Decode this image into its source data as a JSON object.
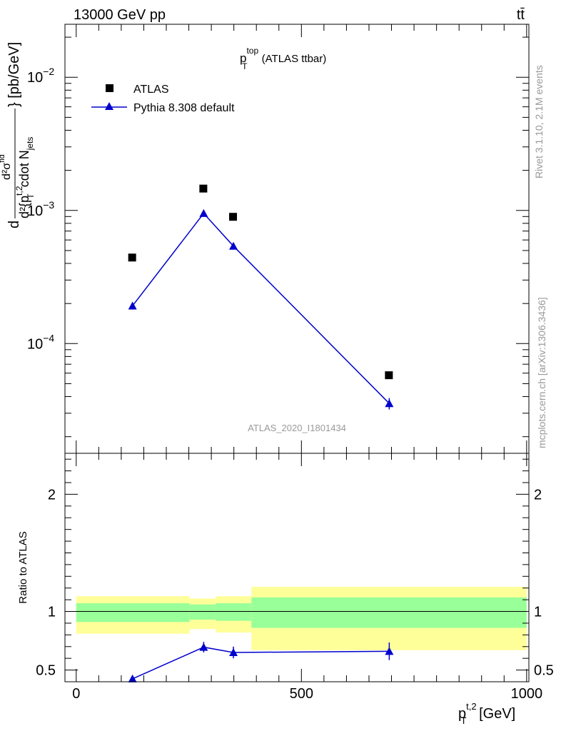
{
  "header": {
    "left": "13000 GeV pp",
    "right": "tt̄"
  },
  "side_labels": {
    "rivet": "Rivet 3.1.10,  2.1M events",
    "mcplots": "mcplots.cern.ch [arXiv:1306.3436]"
  },
  "colors": {
    "data": "#000000",
    "mc": "#0000cc",
    "band_inner": "#99ff99",
    "band_outer": "#ffff99"
  },
  "chart_data": [
    {
      "type": "scatter",
      "title": {
        "main": "p",
        "sup": "top",
        "sub": "T",
        "rest": " (ATLAS ttbar)"
      },
      "watermark": "ATLAS_2020_I1801434",
      "ylabel": {
        "prefix": "d",
        "frac_num": "d²σ",
        "frac_num_sup": "fid",
        "frac_den": "d²{p",
        "frac_den_sup": "t,2",
        "frac_den_sub": "T",
        "frac_den_rest": " cdot N",
        "frac_den_rest_sub": "jets",
        "suffix": "} [pb/GeV]"
      },
      "yscale": "log",
      "xlim": [
        -25,
        1005
      ],
      "ylim": [
        1.5e-05,
        0.025
      ],
      "yticks": [
        {
          "value": 0.01,
          "base": "10",
          "exp": "−2"
        },
        {
          "value": 0.001,
          "base": "10",
          "exp": "−3"
        },
        {
          "value": 0.0001,
          "base": "10",
          "exp": "−4"
        }
      ],
      "legend": {
        "position": "top-left",
        "entries": [
          "ATLAS",
          "Pythia 8.308 default"
        ]
      },
      "series": [
        {
          "name": "ATLAS",
          "marker": "square",
          "points": [
            {
              "x": 125,
              "y": 0.00044
            },
            {
              "x": 283,
              "y": 0.00145
            },
            {
              "x": 349,
              "y": 0.00089
            },
            {
              "x": 695,
              "y": 5.75e-05
            }
          ]
        },
        {
          "name": "Pythia 8.308 default",
          "marker": "triangle",
          "points": [
            {
              "x": 125,
              "y": 0.000192,
              "err": 1.2e-05
            },
            {
              "x": 283,
              "y": 0.00095,
              "err": 5e-05
            },
            {
              "x": 349,
              "y": 0.00054,
              "err": 3e-05
            },
            {
              "x": 695,
              "y": 3.55e-05,
              "err": 3.5e-06
            }
          ]
        }
      ]
    },
    {
      "type": "line",
      "ylabel": "Ratio to ATLAS",
      "xlabel": {
        "main": "p",
        "sup": "t,2",
        "sub": "T",
        "rest": " [GeV]"
      },
      "xlim": [
        -25,
        1005
      ],
      "ylim": [
        0.4,
        2.35
      ],
      "xticks": [
        {
          "value": 0,
          "label": "0"
        },
        {
          "value": 500,
          "label": "500"
        },
        {
          "value": 1000,
          "label": "1000"
        }
      ],
      "yticks": [
        {
          "value": 0.5,
          "label": "0.5"
        },
        {
          "value": 1,
          "label": "1"
        },
        {
          "value": 2,
          "label": "2"
        }
      ],
      "bands": [
        {
          "x0": 0,
          "x1": 252,
          "inner": [
            0.91,
            1.07
          ],
          "outer": [
            0.81,
            1.13
          ]
        },
        {
          "x0": 252,
          "x1": 310,
          "inner": [
            0.93,
            1.06
          ],
          "outer": [
            0.85,
            1.11
          ]
        },
        {
          "x0": 310,
          "x1": 389,
          "inner": [
            0.92,
            1.07
          ],
          "outer": [
            0.82,
            1.13
          ]
        },
        {
          "x0": 389,
          "x1": 1000,
          "inner": [
            0.86,
            1.12
          ],
          "outer": [
            0.67,
            1.21
          ]
        }
      ],
      "series": [
        {
          "name": "Pythia 8.308 default",
          "marker": "triangle",
          "points": [
            {
              "x": 125,
              "y": 0.425,
              "err": 0.027
            },
            {
              "x": 283,
              "y": 0.695,
              "err": 0.045
            },
            {
              "x": 349,
              "y": 0.65,
              "err": 0.05
            },
            {
              "x": 695,
              "y": 0.66,
              "err": 0.075
            }
          ]
        }
      ]
    }
  ]
}
